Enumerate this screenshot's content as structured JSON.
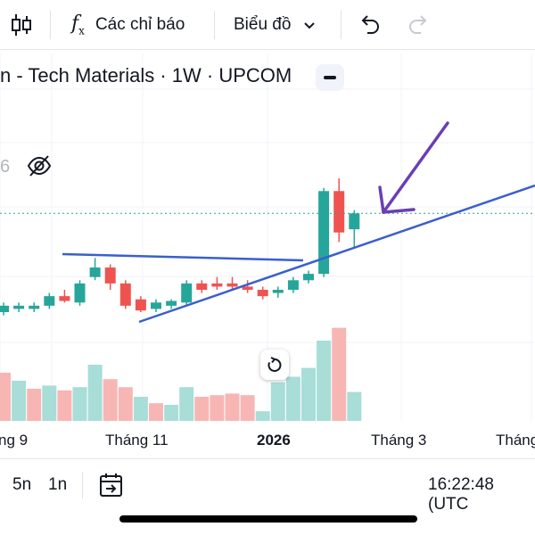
{
  "toolbar": {
    "indicators_label": "Các chỉ báo",
    "chart_type_label": "Biểu đồ"
  },
  "legend": {
    "title": "n - Tech Materials · 1W · UPCOM",
    "hidden_value_digit": "6"
  },
  "xaxis": {
    "labels": [
      "ng 9",
      "Tháng 11",
      "2026",
      "Tháng 3",
      "Tháng"
    ]
  },
  "bottom_bar": {
    "range_5d": "5n",
    "range_1d": "1n",
    "clock": "16:22:48 (UTC"
  },
  "colors": {
    "up": "#26a69a",
    "down": "#ef5350",
    "trendline": "#3a5fcd",
    "arrow": "#6a3fb5",
    "grid": "#f0f3fa",
    "price_line": "#26a69a"
  },
  "chart_data": {
    "type": "candlestick",
    "candles": [
      {
        "o": 34.0,
        "h": 37.0,
        "l": 33.0,
        "c": 36.0
      },
      {
        "o": 35.0,
        "h": 37.0,
        "l": 34.0,
        "c": 36.0
      },
      {
        "o": 35.0,
        "h": 37.0,
        "l": 34.0,
        "c": 36.0
      },
      {
        "o": 36.0,
        "h": 40.0,
        "l": 35.0,
        "c": 39.0
      },
      {
        "o": 39.0,
        "h": 41.0,
        "l": 37.0,
        "c": 37.5
      },
      {
        "o": 37.0,
        "h": 44.0,
        "l": 36.0,
        "c": 43.0
      },
      {
        "o": 45.0,
        "h": 51.0,
        "l": 44.0,
        "c": 48.0
      },
      {
        "o": 48.0,
        "h": 49.0,
        "l": 41.0,
        "c": 43.0
      },
      {
        "o": 43.0,
        "h": 44.0,
        "l": 35.0,
        "c": 36.0
      },
      {
        "o": 38.0,
        "h": 39.0,
        "l": 34.0,
        "c": 34.5
      },
      {
        "o": 35.0,
        "h": 38.0,
        "l": 34.0,
        "c": 37.0
      },
      {
        "o": 36.0,
        "h": 38.0,
        "l": 35.0,
        "c": 37.5
      },
      {
        "o": 37.0,
        "h": 44.0,
        "l": 36.0,
        "c": 43.0
      },
      {
        "o": 43.0,
        "h": 44.0,
        "l": 40.0,
        "c": 41.0
      },
      {
        "o": 43.0,
        "h": 45.0,
        "l": 41.0,
        "c": 42.0
      },
      {
        "o": 43.0,
        "h": 45.0,
        "l": 41.0,
        "c": 42.0
      },
      {
        "o": 42.0,
        "h": 44.0,
        "l": 40.0,
        "c": 41.0
      },
      {
        "o": 41.0,
        "h": 42.0,
        "l": 38.0,
        "c": 39.0
      },
      {
        "o": 40.0,
        "h": 42.0,
        "l": 38.5,
        "c": 41.0
      },
      {
        "o": 41.0,
        "h": 45.0,
        "l": 40.0,
        "c": 44.0
      },
      {
        "o": 44.0,
        "h": 47.0,
        "l": 43.0,
        "c": 46.0
      },
      {
        "o": 46.0,
        "h": 73.0,
        "l": 45.0,
        "c": 72.0
      },
      {
        "o": 72.0,
        "h": 76.0,
        "l": 56.0,
        "c": 59.0
      },
      {
        "o": 60.0,
        "h": 66.0,
        "l": 54.0,
        "c": 65.0
      }
    ],
    "volumes": [
      {
        "v": 60,
        "up": false
      },
      {
        "v": 50,
        "up": true
      },
      {
        "v": 40,
        "up": false
      },
      {
        "v": 44,
        "up": true
      },
      {
        "v": 38,
        "up": false
      },
      {
        "v": 42,
        "up": true
      },
      {
        "v": 70,
        "up": true
      },
      {
        "v": 52,
        "up": false
      },
      {
        "v": 42,
        "up": false
      },
      {
        "v": 30,
        "up": true
      },
      {
        "v": 22,
        "up": false
      },
      {
        "v": 20,
        "up": true
      },
      {
        "v": 42,
        "up": true
      },
      {
        "v": 30,
        "up": false
      },
      {
        "v": 32,
        "up": false
      },
      {
        "v": 34,
        "up": false
      },
      {
        "v": 32,
        "up": false
      },
      {
        "v": 12,
        "up": true
      },
      {
        "v": 48,
        "up": true
      },
      {
        "v": 55,
        "up": true
      },
      {
        "v": 66,
        "up": true
      },
      {
        "v": 100,
        "up": true
      },
      {
        "v": 116,
        "up": false
      },
      {
        "v": 36,
        "up": true
      }
    ],
    "last_price": 65.0,
    "ylim": [
      20,
      90
    ],
    "volume_max": 120
  }
}
